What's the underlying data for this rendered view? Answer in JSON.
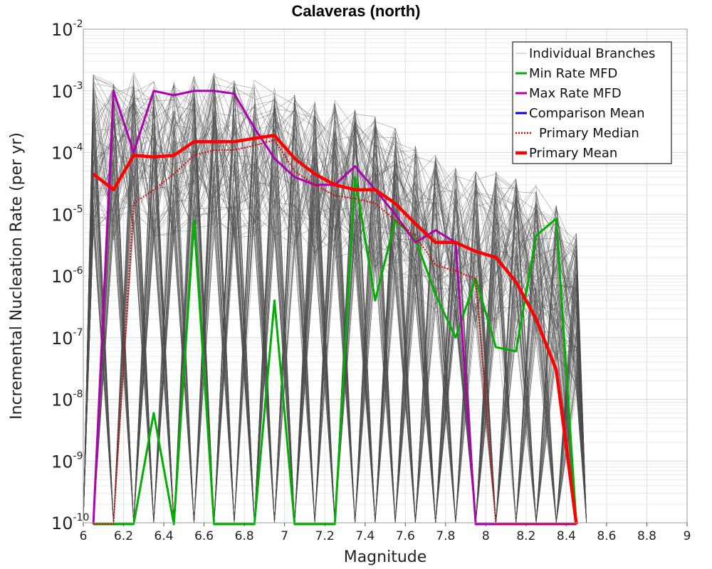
{
  "chart_data": {
    "type": "line",
    "title": "Calaveras (north)",
    "xlabel": "Magnitude",
    "ylabel": "Incremental Nucleation Rate (per yr)",
    "xlim": [
      6,
      9
    ],
    "ylim": [
      1e-10,
      0.01
    ],
    "ylog": true,
    "grid": true,
    "legend_position": "top-right",
    "x_ticks": [
      "6",
      "6.2",
      "6.4",
      "6.6",
      "6.8",
      "7",
      "7.2",
      "7.4",
      "7.6",
      "7.8",
      "8",
      "8.2",
      "8.4",
      "8.6",
      "8.8",
      "9"
    ],
    "y_ticks": [
      {
        "base": "10",
        "exp": "-10"
      },
      {
        "base": "10",
        "exp": "-9"
      },
      {
        "base": "10",
        "exp": "-8"
      },
      {
        "base": "10",
        "exp": "-7"
      },
      {
        "base": "10",
        "exp": "-6"
      },
      {
        "base": "10",
        "exp": "-5"
      },
      {
        "base": "10",
        "exp": "-4"
      },
      {
        "base": "10",
        "exp": "-3"
      },
      {
        "base": "10",
        "exp": "-2"
      }
    ],
    "series": [
      {
        "name": "Individual Branches",
        "color": "#4d4d4d",
        "style": "band",
        "x": [
          6.05,
          6.15,
          6.25,
          6.35,
          6.45,
          6.55,
          6.65,
          6.75,
          6.85,
          6.95,
          7.05,
          7.15,
          7.25,
          7.35,
          7.45,
          7.55,
          7.65,
          7.75,
          7.85,
          7.95,
          8.05,
          8.15,
          8.25,
          8.35,
          8.45
        ],
        "upper": [
          0.002,
          0.0015,
          0.002,
          0.0015,
          0.0015,
          0.0018,
          0.002,
          0.0015,
          0.0015,
          0.0015,
          0.0009,
          0.0007,
          0.0007,
          0.0005,
          0.0004,
          0.00025,
          0.00015,
          0.0001,
          6e-05,
          5e-05,
          5e-05,
          4e-05,
          3e-05,
          1.5e-05,
          5e-06
        ]
      },
      {
        "name": "Min Rate MFD",
        "color": "#00b000",
        "style": "solid",
        "x": [
          6.05,
          6.15,
          6.25,
          6.35,
          6.45,
          6.55,
          6.65,
          6.75,
          6.85,
          6.95,
          7.05,
          7.15,
          7.25,
          7.35,
          7.45,
          7.55,
          7.65,
          7.75,
          7.85,
          7.95,
          8.05,
          8.15,
          8.25,
          8.35,
          8.45
        ],
        "values": [
          null,
          null,
          null,
          6e-09,
          null,
          8e-06,
          null,
          null,
          null,
          4e-07,
          null,
          null,
          null,
          4e-05,
          4e-07,
          8e-06,
          4e-06,
          5e-07,
          1e-07,
          9e-07,
          7e-08,
          6e-08,
          4.5e-06,
          8.5e-06,
          null
        ]
      },
      {
        "name": "Max Rate MFD",
        "color": "#b000b0",
        "style": "solid",
        "x": [
          6.05,
          6.15,
          6.25,
          6.35,
          6.45,
          6.55,
          6.65,
          6.75,
          6.85,
          6.95,
          7.05,
          7.15,
          7.25,
          7.35,
          7.45,
          7.55,
          7.65,
          7.75,
          7.85,
          7.95,
          8.05,
          8.15,
          8.25,
          8.35,
          8.45
        ],
        "values": [
          null,
          0.001,
          0.0001,
          0.001,
          0.00085,
          0.001,
          0.001,
          0.0009,
          0.00025,
          8e-05,
          4e-05,
          3e-05,
          3e-05,
          6e-05,
          2.5e-05,
          1e-05,
          3.5e-06,
          5.5e-06,
          3.5e-06,
          null,
          null,
          null,
          null,
          null,
          null
        ]
      },
      {
        "name": "Comparison Mean",
        "color": "#0000e0",
        "style": "solid",
        "x": [
          6.05,
          6.15,
          6.25,
          6.35,
          6.45,
          6.55,
          6.65,
          6.75,
          6.85,
          6.95,
          7.05,
          7.15,
          7.25,
          7.35,
          7.45,
          7.55,
          7.65,
          7.75,
          7.85,
          7.95,
          8.05,
          8.15,
          8.25,
          8.35,
          8.45
        ],
        "values": [
          4.5e-05,
          2.5e-05,
          9e-05,
          8.5e-05,
          9e-05,
          0.00015,
          0.00015,
          0.00015,
          0.00017,
          0.00019,
          8e-05,
          4.5e-05,
          3e-05,
          2.5e-05,
          2.5e-05,
          1.5e-05,
          7e-06,
          3.5e-06,
          3.5e-06,
          2.5e-06,
          2e-06,
          8e-07,
          2e-07,
          3e-08,
          null
        ]
      },
      {
        "name": "Primary Median",
        "color": "#e00000",
        "style": "dotted",
        "x": [
          6.05,
          6.15,
          6.25,
          6.35,
          6.45,
          6.55,
          6.65,
          6.75,
          6.85,
          6.95,
          7.05,
          7.15,
          7.25,
          7.35,
          7.45,
          7.55,
          7.65,
          7.75,
          7.85,
          7.95,
          8.05,
          8.15,
          8.25,
          8.35,
          8.45
        ],
        "values": [
          null,
          null,
          1.5e-05,
          2.5e-05,
          4.5e-05,
          9e-05,
          0.00011,
          0.00011,
          0.00013,
          0.00016,
          5e-05,
          3e-05,
          2e-05,
          1.8e-05,
          1.5e-05,
          8e-06,
          4.5e-06,
          1.5e-06,
          1.2e-06,
          9e-07,
          null,
          null,
          null,
          null,
          null
        ]
      },
      {
        "name": "Primary Mean",
        "color": "#ff0000",
        "style": "thick",
        "x": [
          6.05,
          6.15,
          6.25,
          6.35,
          6.45,
          6.55,
          6.65,
          6.75,
          6.85,
          6.95,
          7.05,
          7.15,
          7.25,
          7.35,
          7.45,
          7.55,
          7.65,
          7.75,
          7.85,
          7.95,
          8.05,
          8.15,
          8.25,
          8.35,
          8.45
        ],
        "values": [
          4.5e-05,
          2.5e-05,
          9e-05,
          8.5e-05,
          9e-05,
          0.00015,
          0.00015,
          0.00015,
          0.00017,
          0.00019,
          8e-05,
          4.5e-05,
          3e-05,
          2.5e-05,
          2.5e-05,
          1.5e-05,
          7e-06,
          3.5e-06,
          3.5e-06,
          2.5e-06,
          2e-06,
          8e-07,
          2e-07,
          3e-08,
          null
        ]
      }
    ]
  }
}
